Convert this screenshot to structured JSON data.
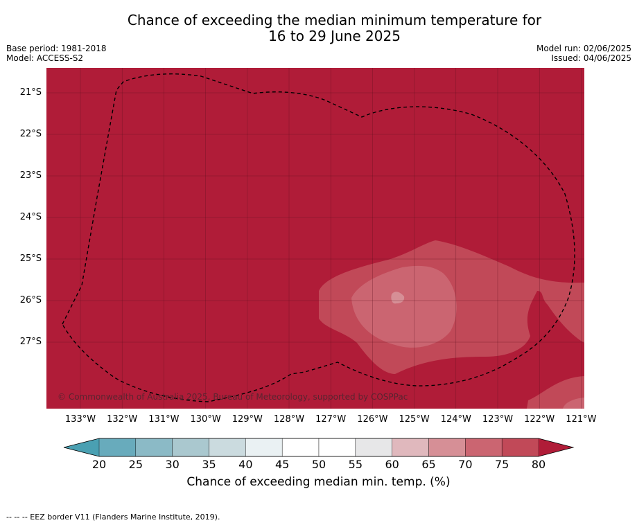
{
  "title_line1": "Chance of exceeding the median minimum temperature for",
  "title_line2": "16 to 29 June 2025",
  "meta": {
    "base_period": "Base period: 1981-2018",
    "model": "Model: ACCESS-S2",
    "model_run": "Model run: 02/06/2025",
    "issued": "Issued: 04/06/2025"
  },
  "map": {
    "lat_labels": [
      "21°S",
      "22°S",
      "23°S",
      "24°S",
      "25°S",
      "26°S",
      "27°S"
    ],
    "lon_labels": [
      "133°W",
      "132°W",
      "131°W",
      "130°W",
      "129°W",
      "128°W",
      "127°W",
      "126°W",
      "125°W",
      "124°W",
      "123°W",
      "122°W",
      "121°W"
    ],
    "copyright": "© Commonwealth of Australia 2025, Bureau of Meteorology, supported by COSPPac",
    "colors": {
      "gt80": "#b01c38",
      "75_80": "#c14958",
      "70_75": "#cb6571",
      "65_70": "#d68f96",
      "grid": "#5a0f1d",
      "eez": "#000000"
    }
  },
  "colorbar": {
    "ticks": [
      "20",
      "25",
      "30",
      "35",
      "40",
      "45",
      "50",
      "55",
      "60",
      "65",
      "70",
      "75",
      "80"
    ],
    "colors": [
      "#68abbc",
      "#8bbac6",
      "#aac8cf",
      "#cbdbdf",
      "#eaf1f3",
      "#ffffff",
      "#ffffff",
      "#e7e7e8",
      "#e0b8bd",
      "#d68f96",
      "#cb6571",
      "#c14958"
    ],
    "under_color": "#4aa0b2",
    "over_color": "#b01c38",
    "label": "Chance of exceeding median min. temp. (%)"
  },
  "footnote": "--  --  -- EEZ border V11 (Flanders Marine Institute, 2019)."
}
